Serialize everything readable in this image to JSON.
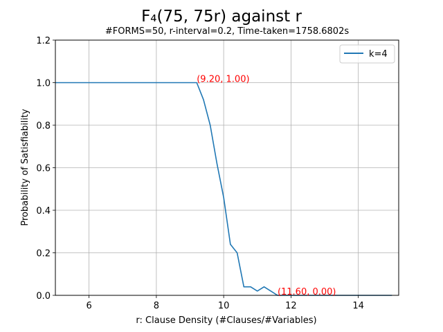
{
  "chart_data": {
    "type": "line",
    "title": "F₄(75, 75r) against r",
    "subtitle": "#FORMS=50, r-interval=0.2, Time-taken=1758.6802s",
    "xlabel": "r: Clause Density (#Clauses/#Variables)",
    "ylabel": "Probability of Satisfiability",
    "xlim": [
      5,
      15.2
    ],
    "ylim": [
      0,
      1.2
    ],
    "xticks": [
      6,
      8,
      10,
      12,
      14
    ],
    "xtick_labels": [
      "6",
      "8",
      "10",
      "12",
      "14"
    ],
    "yticks": [
      0.0,
      0.2,
      0.4,
      0.6,
      0.8,
      1.0,
      1.2
    ],
    "ytick_labels": [
      "0.0",
      "0.2",
      "0.4",
      "0.6",
      "0.8",
      "1.0",
      "1.2"
    ],
    "grid": true,
    "legend_position": "top-right",
    "series": [
      {
        "name": "k=4",
        "color": "#1f77b4",
        "x": [
          5.0,
          5.2,
          5.4,
          5.6,
          5.8,
          6.0,
          6.2,
          6.4,
          6.6,
          6.8,
          7.0,
          7.2,
          7.4,
          7.6,
          7.8,
          8.0,
          8.2,
          8.4,
          8.6,
          8.8,
          9.0,
          9.2,
          9.4,
          9.6,
          9.8,
          10.0,
          10.2,
          10.4,
          10.6,
          10.8,
          11.0,
          11.2,
          11.4,
          11.6,
          11.8,
          12.0,
          12.2,
          12.4,
          12.6,
          12.8,
          13.0,
          13.2,
          13.4,
          13.6,
          13.8,
          14.0,
          14.2,
          14.4,
          14.6,
          14.8,
          15.0
        ],
        "y": [
          1.0,
          1.0,
          1.0,
          1.0,
          1.0,
          1.0,
          1.0,
          1.0,
          1.0,
          1.0,
          1.0,
          1.0,
          1.0,
          1.0,
          1.0,
          1.0,
          1.0,
          1.0,
          1.0,
          1.0,
          1.0,
          1.0,
          0.92,
          0.8,
          0.62,
          0.46,
          0.24,
          0.2,
          0.04,
          0.04,
          0.02,
          0.04,
          0.02,
          0.0,
          0.0,
          0.0,
          0.0,
          0.0,
          0.0,
          0.0,
          0.0,
          0.0,
          0.0,
          0.0,
          0.0,
          0.0,
          0.0,
          0.0,
          0.0,
          0.0,
          0.0
        ]
      }
    ],
    "annotations": [
      {
        "text": "(9.20, 1.00)",
        "x": 9.2,
        "y": 1.0,
        "color": "#ff0000"
      },
      {
        "text": "(11.60, 0.00)",
        "x": 11.6,
        "y": 0.0,
        "color": "#ff0000"
      }
    ]
  }
}
